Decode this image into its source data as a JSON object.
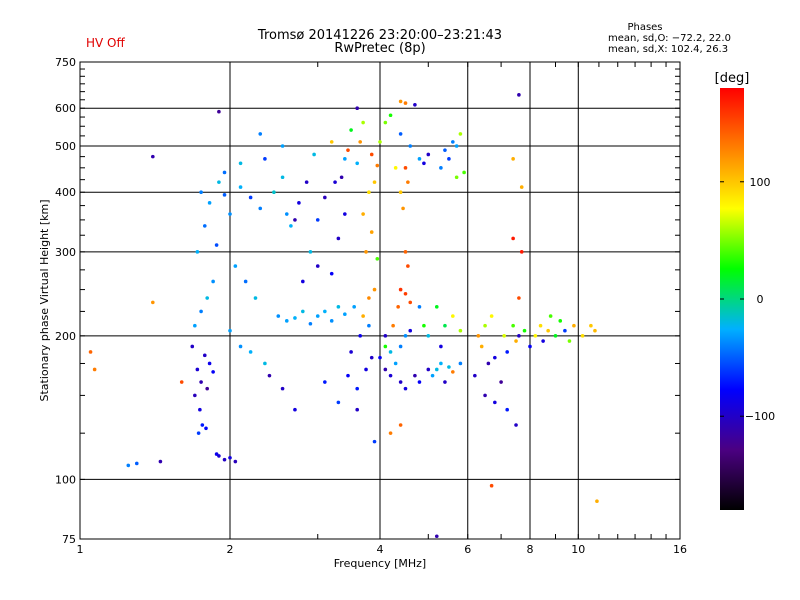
{
  "header": {
    "status": "HV Off",
    "title_line1": "Tromsø 20141226 23:20:00–23:21:43",
    "title_line2": "RwPretec (8p)",
    "stats_heading": "Phases",
    "stats_o": "mean, sd,O: −72.2, 22.0",
    "stats_x": "mean, sd,X: 102.4, 26.3"
  },
  "colors": {
    "status": "#e00000",
    "colorbar": [
      "#000000",
      "#4b0082",
      "#0000ff",
      "#00b0ff",
      "#00ff00",
      "#ffff00",
      "#ff8000",
      "#ff0000"
    ]
  },
  "chart_data": {
    "type": "scatter",
    "title": "Tromsø 20141226 23:20:00–23:21:43",
    "subtitle": "RwPretec (8p)",
    "xlabel": "Frequency [MHz]",
    "ylabel": "Stationary phase Virtual Height [km]",
    "x_scale": "log",
    "y_scale": "log",
    "xlim": [
      1,
      16
    ],
    "ylim": [
      75,
      750
    ],
    "x_ticks": [
      1,
      2,
      4,
      6,
      8,
      10,
      16
    ],
    "x_tick_labels": [
      "1",
      "2",
      "4",
      "6",
      "8",
      "10",
      "16"
    ],
    "y_ticks": [
      75,
      100,
      200,
      300,
      400,
      500,
      600,
      750
    ],
    "y_tick_labels": [
      "75",
      "100",
      "200",
      "300",
      "400",
      "500",
      "600",
      "750"
    ],
    "grid": true,
    "colorbar": {
      "label": "[deg]",
      "range": [
        -180,
        180
      ],
      "ticks": [
        100,
        0,
        -100
      ],
      "tick_labels": [
        "100",
        "0",
        "−100"
      ]
    },
    "points": [
      [
        1.72,
        170,
        -95
      ],
      [
        1.75,
        160,
        -110
      ],
      [
        1.78,
        182,
        -100
      ],
      [
        1.82,
        175,
        -85
      ],
      [
        1.7,
        150,
        -105
      ],
      [
        1.74,
        140,
        -90
      ],
      [
        1.8,
        155,
        -120
      ],
      [
        1.85,
        168,
        -80
      ],
      [
        1.68,
        190,
        -100
      ],
      [
        1.76,
        130,
        -70
      ],
      [
        1.73,
        125,
        -60
      ],
      [
        1.79,
        128,
        -75
      ],
      [
        1.9,
        112,
        -95
      ],
      [
        1.95,
        110,
        -100
      ],
      [
        2.0,
        111,
        -90
      ],
      [
        2.05,
        109,
        -105
      ],
      [
        1.88,
        113,
        -85
      ],
      [
        1.25,
        107,
        -40
      ],
      [
        1.3,
        108,
        -50
      ],
      [
        1.45,
        109,
        -110
      ],
      [
        1.7,
        210,
        -30
      ],
      [
        1.75,
        225,
        -40
      ],
      [
        1.8,
        240,
        -20
      ],
      [
        1.85,
        260,
        -35
      ],
      [
        1.72,
        300,
        -25
      ],
      [
        1.78,
        340,
        -45
      ],
      [
        1.82,
        380,
        -30
      ],
      [
        1.75,
        400,
        -40
      ],
      [
        1.9,
        420,
        -20
      ],
      [
        1.95,
        395,
        -50
      ],
      [
        2.0,
        360,
        -35
      ],
      [
        2.1,
        410,
        -25
      ],
      [
        2.2,
        390,
        -60
      ],
      [
        2.3,
        370,
        -40
      ],
      [
        1.88,
        310,
        -55
      ],
      [
        2.05,
        280,
        -30
      ],
      [
        2.15,
        260,
        -45
      ],
      [
        2.25,
        240,
        -20
      ],
      [
        2.0,
        205,
        -30
      ],
      [
        2.1,
        190,
        -35
      ],
      [
        2.2,
        185,
        -25
      ],
      [
        2.35,
        175,
        -20
      ],
      [
        2.45,
        400,
        -15
      ],
      [
        2.55,
        430,
        -20
      ],
      [
        2.6,
        360,
        -35
      ],
      [
        2.65,
        340,
        -25
      ],
      [
        2.7,
        350,
        -110
      ],
      [
        2.75,
        380,
        -90
      ],
      [
        2.85,
        420,
        -100
      ],
      [
        2.9,
        300,
        -20
      ],
      [
        2.5,
        220,
        -35
      ],
      [
        2.6,
        215,
        -30
      ],
      [
        2.7,
        218,
        -25
      ],
      [
        2.8,
        225,
        -20
      ],
      [
        2.9,
        212,
        -40
      ],
      [
        3.0,
        220,
        -30
      ],
      [
        3.1,
        225,
        -25
      ],
      [
        3.2,
        215,
        -35
      ],
      [
        3.3,
        230,
        -20
      ],
      [
        3.4,
        222,
        -30
      ],
      [
        2.8,
        260,
        -90
      ],
      [
        3.0,
        280,
        -100
      ],
      [
        3.2,
        270,
        -80
      ],
      [
        3.3,
        320,
        -100
      ],
      [
        3.4,
        360,
        -90
      ],
      [
        3.1,
        390,
        -105
      ],
      [
        3.25,
        420,
        -95
      ],
      [
        3.35,
        430,
        -110
      ],
      [
        3.0,
        350,
        -60
      ],
      [
        2.95,
        480,
        -20
      ],
      [
        3.4,
        470,
        -30
      ],
      [
        3.6,
        460,
        -25
      ],
      [
        3.5,
        540,
        20
      ],
      [
        3.7,
        560,
        60
      ],
      [
        3.6,
        600,
        -110
      ],
      [
        3.45,
        165,
        -80
      ],
      [
        3.6,
        155,
        -70
      ],
      [
        3.75,
        170,
        -90
      ],
      [
        3.85,
        180,
        -100
      ],
      [
        3.5,
        185,
        -95
      ],
      [
        3.65,
        200,
        -85
      ],
      [
        3.8,
        210,
        -40
      ],
      [
        3.55,
        230,
        -30
      ],
      [
        3.7,
        220,
        110
      ],
      [
        3.8,
        240,
        125
      ],
      [
        3.9,
        250,
        120
      ],
      [
        3.75,
        300,
        120
      ],
      [
        3.85,
        330,
        115
      ],
      [
        3.95,
        290,
        40
      ],
      [
        3.7,
        360,
        110
      ],
      [
        3.8,
        400,
        90
      ],
      [
        3.9,
        420,
        100
      ],
      [
        3.95,
        455,
        130
      ],
      [
        3.85,
        480,
        150
      ],
      [
        4.0,
        510,
        60
      ],
      [
        4.1,
        560,
        50
      ],
      [
        4.2,
        580,
        30
      ],
      [
        4.4,
        620,
        120
      ],
      [
        4.5,
        615,
        130
      ],
      [
        4.7,
        610,
        -100
      ],
      [
        4.4,
        530,
        -50
      ],
      [
        4.6,
        500,
        -40
      ],
      [
        4.8,
        470,
        -30
      ],
      [
        4.3,
        450,
        80
      ],
      [
        4.5,
        450,
        150
      ],
      [
        4.55,
        420,
        130
      ],
      [
        4.4,
        400,
        100
      ],
      [
        4.45,
        370,
        120
      ],
      [
        4.5,
        300,
        140
      ],
      [
        4.55,
        280,
        150
      ],
      [
        4.4,
        250,
        160
      ],
      [
        4.5,
        245,
        155
      ],
      [
        4.35,
        230,
        140
      ],
      [
        4.6,
        235,
        150
      ],
      [
        4.25,
        210,
        130
      ],
      [
        4.1,
        200,
        -100
      ],
      [
        4.2,
        185,
        -20
      ],
      [
        4.3,
        175,
        -30
      ],
      [
        4.4,
        190,
        -40
      ],
      [
        4.5,
        200,
        -35
      ],
      [
        4.6,
        205,
        -90
      ],
      [
        4.0,
        180,
        -80
      ],
      [
        4.1,
        170,
        -110
      ],
      [
        4.2,
        165,
        -95
      ],
      [
        4.4,
        160,
        -100
      ],
      [
        4.5,
        155,
        -90
      ],
      [
        4.7,
        165,
        -110
      ],
      [
        4.8,
        160,
        -80
      ],
      [
        5.0,
        170,
        -100
      ],
      [
        5.1,
        165,
        -30
      ],
      [
        5.2,
        170,
        -20
      ],
      [
        5.3,
        175,
        -25
      ],
      [
        5.5,
        172,
        -20
      ],
      [
        5.6,
        168,
        130
      ],
      [
        5.8,
        175,
        -40
      ],
      [
        5.4,
        160,
        -100
      ],
      [
        5.3,
        190,
        -90
      ],
      [
        5.0,
        200,
        -20
      ],
      [
        4.9,
        210,
        30
      ],
      [
        4.8,
        230,
        -40
      ],
      [
        5.2,
        230,
        20
      ],
      [
        5.4,
        210,
        10
      ],
      [
        5.6,
        220,
        80
      ],
      [
        5.8,
        205,
        60
      ],
      [
        5.6,
        510,
        -40
      ],
      [
        5.7,
        500,
        -30
      ],
      [
        5.8,
        530,
        60
      ],
      [
        5.4,
        490,
        -50
      ],
      [
        5.5,
        470,
        -60
      ],
      [
        5.3,
        450,
        -40
      ],
      [
        5.0,
        480,
        -100
      ],
      [
        4.9,
        460,
        -90
      ],
      [
        5.9,
        440,
        40
      ],
      [
        5.7,
        430,
        50
      ],
      [
        6.2,
        165,
        -100
      ],
      [
        6.3,
        200,
        120
      ],
      [
        6.4,
        190,
        110
      ],
      [
        6.5,
        210,
        60
      ],
      [
        6.6,
        175,
        -110
      ],
      [
        6.7,
        220,
        80
      ],
      [
        6.8,
        180,
        -90
      ],
      [
        7.0,
        160,
        -120
      ],
      [
        7.1,
        200,
        70
      ],
      [
        7.2,
        185,
        -70
      ],
      [
        7.4,
        210,
        40
      ],
      [
        7.5,
        195,
        110
      ],
      [
        7.6,
        200,
        -100
      ],
      [
        7.8,
        205,
        30
      ],
      [
        8.0,
        190,
        -80
      ],
      [
        8.2,
        200,
        80
      ],
      [
        8.4,
        210,
        90
      ],
      [
        8.5,
        195,
        -90
      ],
      [
        8.7,
        205,
        100
      ],
      [
        8.8,
        220,
        40
      ],
      [
        9.0,
        200,
        20
      ],
      [
        9.2,
        215,
        30
      ],
      [
        9.4,
        205,
        -60
      ],
      [
        9.6,
        195,
        50
      ],
      [
        9.8,
        210,
        110
      ],
      [
        10.2,
        200,
        90
      ],
      [
        10.6,
        210,
        100
      ],
      [
        10.8,
        205,
        105
      ],
      [
        6.5,
        150,
        -110
      ],
      [
        6.8,
        145,
        -90
      ],
      [
        7.2,
        140,
        -70
      ],
      [
        7.5,
        130,
        -100
      ],
      [
        7.6,
        240,
        150
      ],
      [
        7.7,
        300,
        170
      ],
      [
        7.4,
        320,
        170
      ],
      [
        7.7,
        410,
        110
      ],
      [
        7.4,
        470,
        110
      ],
      [
        7.6,
        640,
        -110
      ],
      [
        6.7,
        97,
        150
      ],
      [
        10.9,
        90,
        110
      ],
      [
        1.05,
        185,
        140
      ],
      [
        1.07,
        170,
        130
      ],
      [
        1.4,
        235,
        120
      ],
      [
        1.6,
        160,
        150
      ],
      [
        5.2,
        76,
        -110
      ],
      [
        4.1,
        190,
        30
      ],
      [
        2.4,
        165,
        -110
      ],
      [
        2.55,
        155,
        -100
      ],
      [
        2.7,
        140,
        -90
      ],
      [
        3.1,
        160,
        -70
      ],
      [
        3.3,
        145,
        -60
      ],
      [
        3.6,
        140,
        -100
      ],
      [
        3.9,
        120,
        -60
      ],
      [
        4.2,
        125,
        130
      ],
      [
        4.4,
        130,
        140
      ],
      [
        1.9,
        590,
        -120
      ],
      [
        1.4,
        475,
        -110
      ],
      [
        2.3,
        530,
        -40
      ],
      [
        3.2,
        510,
        100
      ],
      [
        3.45,
        490,
        150
      ],
      [
        3.65,
        510,
        120
      ],
      [
        2.55,
        500,
        -30
      ],
      [
        2.35,
        470,
        -60
      ],
      [
        2.1,
        460,
        -20
      ],
      [
        1.95,
        440,
        -45
      ]
    ]
  }
}
